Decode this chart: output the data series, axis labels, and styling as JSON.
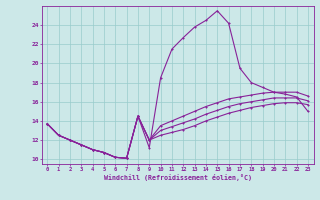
{
  "background_color": "#cce8e8",
  "grid_color": "#99cccc",
  "line_color": "#882299",
  "xlabel": "Windchill (Refroidissement éolien,°C)",
  "ylim": [
    9.5,
    26.0
  ],
  "xlim": [
    -0.5,
    23.5
  ],
  "yticks": [
    10,
    12,
    14,
    16,
    18,
    20,
    22,
    24
  ],
  "xticks": [
    0,
    1,
    2,
    3,
    4,
    5,
    6,
    7,
    8,
    9,
    10,
    11,
    12,
    13,
    14,
    15,
    16,
    17,
    18,
    19,
    20,
    21,
    22,
    23
  ],
  "curve1_x": [
    0,
    1,
    2,
    3,
    4,
    5,
    6,
    7,
    8,
    9,
    10,
    11,
    12,
    13,
    14,
    15,
    16,
    17,
    18,
    19,
    20,
    21,
    22,
    23
  ],
  "curve1_y": [
    13.7,
    12.5,
    12.0,
    11.5,
    11.0,
    10.7,
    10.2,
    10.1,
    14.5,
    11.2,
    18.5,
    21.5,
    22.7,
    23.8,
    24.5,
    25.5,
    24.2,
    19.5,
    18.0,
    17.5,
    17.0,
    16.8,
    16.5,
    15.0
  ],
  "curve2_x": [
    0,
    1,
    2,
    3,
    4,
    5,
    6,
    7,
    8,
    9,
    10,
    11,
    12,
    13,
    14,
    15,
    16,
    17,
    18,
    19,
    20,
    21,
    22,
    23
  ],
  "curve2_y": [
    13.7,
    12.5,
    12.0,
    11.5,
    11.0,
    10.7,
    10.2,
    10.1,
    14.5,
    12.0,
    13.5,
    14.0,
    14.5,
    15.0,
    15.5,
    15.9,
    16.3,
    16.5,
    16.7,
    16.9,
    17.0,
    17.0,
    17.0,
    16.6
  ],
  "curve3_x": [
    0,
    1,
    2,
    3,
    4,
    5,
    6,
    7,
    8,
    9,
    10,
    11,
    12,
    13,
    14,
    15,
    16,
    17,
    18,
    19,
    20,
    21,
    22,
    23
  ],
  "curve3_y": [
    13.7,
    12.5,
    12.0,
    11.5,
    11.0,
    10.7,
    10.2,
    10.1,
    14.5,
    12.0,
    13.0,
    13.4,
    13.8,
    14.2,
    14.7,
    15.1,
    15.5,
    15.8,
    16.0,
    16.2,
    16.4,
    16.4,
    16.4,
    16.1
  ],
  "curve4_x": [
    0,
    1,
    2,
    3,
    4,
    5,
    6,
    7,
    8,
    9,
    10,
    11,
    12,
    13,
    14,
    15,
    16,
    17,
    18,
    19,
    20,
    21,
    22,
    23
  ],
  "curve4_y": [
    13.7,
    12.5,
    12.0,
    11.5,
    11.0,
    10.7,
    10.2,
    10.1,
    14.5,
    12.0,
    12.5,
    12.8,
    13.1,
    13.5,
    14.0,
    14.4,
    14.8,
    15.1,
    15.4,
    15.6,
    15.8,
    15.9,
    15.9,
    15.7
  ]
}
